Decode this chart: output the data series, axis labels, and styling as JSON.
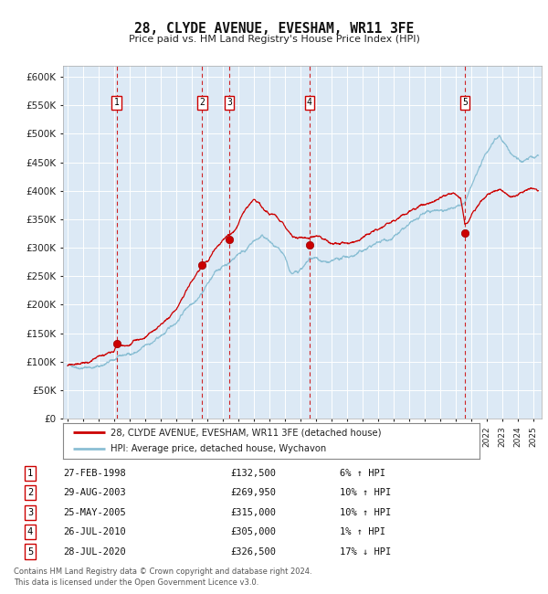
{
  "title": "28, CLYDE AVENUE, EVESHAM, WR11 3FE",
  "subtitle": "Price paid vs. HM Land Registry's House Price Index (HPI)",
  "plot_bg_color": "#dce9f5",
  "hpi_line_color": "#8bbfd4",
  "price_line_color": "#cc0000",
  "marker_color": "#cc0000",
  "ylim": [
    0,
    620000
  ],
  "yticks": [
    0,
    50000,
    100000,
    150000,
    200000,
    250000,
    300000,
    350000,
    400000,
    450000,
    500000,
    550000,
    600000
  ],
  "xlim_start": 1994.7,
  "xlim_end": 2025.5,
  "transactions": [
    {
      "num": 1,
      "date": "27-FEB-1998",
      "year": 1998.16,
      "price": 132500
    },
    {
      "num": 2,
      "date": "29-AUG-2003",
      "year": 2003.66,
      "price": 269950
    },
    {
      "num": 3,
      "date": "25-MAY-2005",
      "year": 2005.4,
      "price": 315000
    },
    {
      "num": 4,
      "date": "26-JUL-2010",
      "year": 2010.57,
      "price": 305000
    },
    {
      "num": 5,
      "date": "28-JUL-2020",
      "year": 2020.57,
      "price": 326500
    }
  ],
  "legend_property_label": "28, CLYDE AVENUE, EVESHAM, WR11 3FE (detached house)",
  "legend_hpi_label": "HPI: Average price, detached house, Wychavon",
  "footer": "Contains HM Land Registry data © Crown copyright and database right 2024.\nThis data is licensed under the Open Government Licence v3.0.",
  "table_rows": [
    [
      1,
      "27-FEB-1998",
      "£132,500",
      "6% ↑ HPI"
    ],
    [
      2,
      "29-AUG-2003",
      "£269,950",
      "10% ↑ HPI"
    ],
    [
      3,
      "25-MAY-2005",
      "£315,000",
      "10% ↑ HPI"
    ],
    [
      4,
      "26-JUL-2010",
      "£305,000",
      "1% ↑ HPI"
    ],
    [
      5,
      "28-JUL-2020",
      "£326,500",
      "17% ↓ HPI"
    ]
  ],
  "hpi_anchors": [
    [
      1995.0,
      93000
    ],
    [
      1995.5,
      95000
    ],
    [
      1996.0,
      97000
    ],
    [
      1996.5,
      99000
    ],
    [
      1997.0,
      102000
    ],
    [
      1997.5,
      108000
    ],
    [
      1998.0,
      113000
    ],
    [
      1998.5,
      118000
    ],
    [
      1999.0,
      122000
    ],
    [
      1999.5,
      128000
    ],
    [
      2000.0,
      135000
    ],
    [
      2000.5,
      143000
    ],
    [
      2001.0,
      152000
    ],
    [
      2001.5,
      163000
    ],
    [
      2002.0,
      178000
    ],
    [
      2002.5,
      200000
    ],
    [
      2003.0,
      218000
    ],
    [
      2003.5,
      235000
    ],
    [
      2003.66,
      242000
    ],
    [
      2004.0,
      258000
    ],
    [
      2004.5,
      275000
    ],
    [
      2005.0,
      288000
    ],
    [
      2005.4,
      296000
    ],
    [
      2005.8,
      308000
    ],
    [
      2006.0,
      315000
    ],
    [
      2006.5,
      325000
    ],
    [
      2007.0,
      338000
    ],
    [
      2007.5,
      345000
    ],
    [
      2007.8,
      340000
    ],
    [
      2008.0,
      335000
    ],
    [
      2008.5,
      318000
    ],
    [
      2009.0,
      295000
    ],
    [
      2009.3,
      272000
    ],
    [
      2009.5,
      268000
    ],
    [
      2009.8,
      270000
    ],
    [
      2010.0,
      278000
    ],
    [
      2010.5,
      288000
    ],
    [
      2010.57,
      291000
    ],
    [
      2011.0,
      290000
    ],
    [
      2011.5,
      285000
    ],
    [
      2012.0,
      282000
    ],
    [
      2012.5,
      284000
    ],
    [
      2013.0,
      288000
    ],
    [
      2013.5,
      293000
    ],
    [
      2014.0,
      300000
    ],
    [
      2014.5,
      308000
    ],
    [
      2015.0,
      315000
    ],
    [
      2015.5,
      322000
    ],
    [
      2016.0,
      330000
    ],
    [
      2016.5,
      338000
    ],
    [
      2017.0,
      345000
    ],
    [
      2017.5,
      352000
    ],
    [
      2018.0,
      358000
    ],
    [
      2018.5,
      363000
    ],
    [
      2019.0,
      368000
    ],
    [
      2019.5,
      373000
    ],
    [
      2020.0,
      372000
    ],
    [
      2020.5,
      375000
    ],
    [
      2020.57,
      378000
    ],
    [
      2021.0,
      405000
    ],
    [
      2021.5,
      435000
    ],
    [
      2022.0,
      462000
    ],
    [
      2022.3,
      478000
    ],
    [
      2022.5,
      490000
    ],
    [
      2022.8,
      498000
    ],
    [
      2023.0,
      490000
    ],
    [
      2023.3,
      478000
    ],
    [
      2023.5,
      468000
    ],
    [
      2023.8,
      462000
    ],
    [
      2024.0,
      458000
    ],
    [
      2024.3,
      455000
    ],
    [
      2024.5,
      458000
    ],
    [
      2024.8,
      462000
    ],
    [
      2025.0,
      460000
    ],
    [
      2025.3,
      462000
    ]
  ],
  "price_anchors": [
    [
      1995.0,
      93000
    ],
    [
      1995.5,
      95500
    ],
    [
      1996.0,
      97500
    ],
    [
      1996.5,
      100000
    ],
    [
      1997.0,
      103000
    ],
    [
      1997.5,
      110000
    ],
    [
      1998.0,
      120000
    ],
    [
      1998.16,
      132500
    ],
    [
      1998.5,
      128000
    ],
    [
      1999.0,
      130000
    ],
    [
      1999.5,
      136000
    ],
    [
      2000.0,
      142000
    ],
    [
      2000.5,
      152000
    ],
    [
      2001.0,
      162000
    ],
    [
      2001.5,
      175000
    ],
    [
      2002.0,
      192000
    ],
    [
      2002.5,
      215000
    ],
    [
      2003.0,
      238000
    ],
    [
      2003.5,
      258000
    ],
    [
      2003.66,
      269950
    ],
    [
      2004.0,
      275000
    ],
    [
      2004.3,
      285000
    ],
    [
      2004.5,
      292000
    ],
    [
      2005.0,
      305000
    ],
    [
      2005.4,
      315000
    ],
    [
      2005.7,
      322000
    ],
    [
      2006.0,
      338000
    ],
    [
      2006.3,
      352000
    ],
    [
      2006.5,
      362000
    ],
    [
      2006.8,
      368000
    ],
    [
      2007.0,
      372000
    ],
    [
      2007.3,
      368000
    ],
    [
      2007.5,
      358000
    ],
    [
      2007.8,
      352000
    ],
    [
      2008.0,
      348000
    ],
    [
      2008.3,
      348000
    ],
    [
      2008.5,
      345000
    ],
    [
      2008.8,
      338000
    ],
    [
      2009.0,
      330000
    ],
    [
      2009.3,
      320000
    ],
    [
      2009.5,
      312000
    ],
    [
      2009.8,
      308000
    ],
    [
      2010.0,
      305000
    ],
    [
      2010.57,
      305000
    ],
    [
      2010.8,
      308000
    ],
    [
      2011.0,
      310000
    ],
    [
      2011.3,
      308000
    ],
    [
      2011.5,
      305000
    ],
    [
      2012.0,
      298000
    ],
    [
      2012.5,
      294000
    ],
    [
      2013.0,
      295000
    ],
    [
      2013.5,
      298000
    ],
    [
      2014.0,
      305000
    ],
    [
      2014.5,
      312000
    ],
    [
      2015.0,
      318000
    ],
    [
      2015.5,
      325000
    ],
    [
      2016.0,
      332000
    ],
    [
      2016.5,
      340000
    ],
    [
      2017.0,
      348000
    ],
    [
      2017.5,
      355000
    ],
    [
      2018.0,
      362000
    ],
    [
      2018.5,
      368000
    ],
    [
      2019.0,
      374000
    ],
    [
      2019.5,
      378000
    ],
    [
      2020.0,
      375000
    ],
    [
      2020.3,
      370000
    ],
    [
      2020.57,
      326500
    ],
    [
      2020.8,
      332000
    ],
    [
      2021.0,
      345000
    ],
    [
      2021.3,
      358000
    ],
    [
      2021.5,
      368000
    ],
    [
      2021.8,
      378000
    ],
    [
      2022.0,
      385000
    ],
    [
      2022.3,
      392000
    ],
    [
      2022.5,
      398000
    ],
    [
      2022.8,
      402000
    ],
    [
      2023.0,
      400000
    ],
    [
      2023.3,
      396000
    ],
    [
      2023.5,
      393000
    ],
    [
      2023.8,
      392000
    ],
    [
      2024.0,
      395000
    ],
    [
      2024.3,
      398000
    ],
    [
      2024.5,
      402000
    ],
    [
      2024.8,
      405000
    ],
    [
      2025.0,
      402000
    ],
    [
      2025.3,
      400000
    ]
  ]
}
